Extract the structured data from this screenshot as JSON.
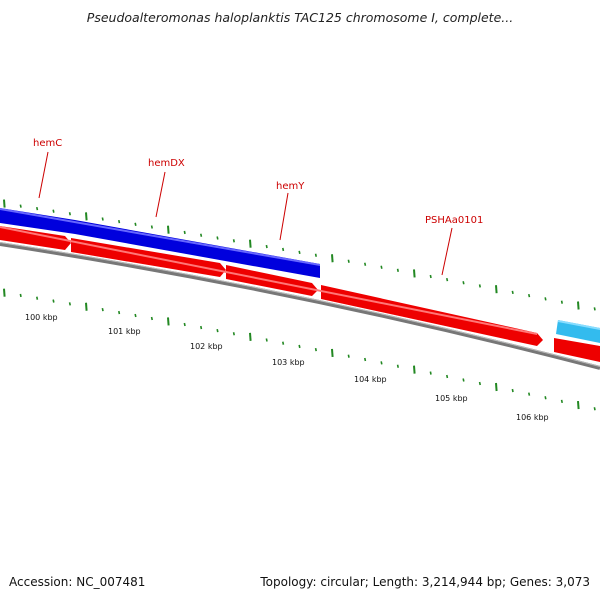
{
  "title": "Pseudoalteromonas haloplanktis TAC125 chromosome I, complete...",
  "footer": {
    "accession": "Accession: NC_007481",
    "summary": "Topology: circular; Length: 3,214,944 bp; Genes: 3,073"
  },
  "gene_labels": [
    {
      "name": "hemC"
    },
    {
      "name": "hemDX"
    },
    {
      "name": "hemY"
    },
    {
      "name": "PSHAa0101"
    }
  ],
  "ruler_labels": [
    "100 kbp",
    "101 kbp",
    "102 kbp",
    "103 kbp",
    "104 kbp",
    "105 kbp",
    "106 kbp"
  ],
  "colors": {
    "cds_forward": "#ee0000",
    "blue_feature": "#0000dd",
    "cyan_feature": "#33bbee",
    "backbone": "#777777",
    "ticks": "#228822",
    "labels": "#cc0000"
  }
}
